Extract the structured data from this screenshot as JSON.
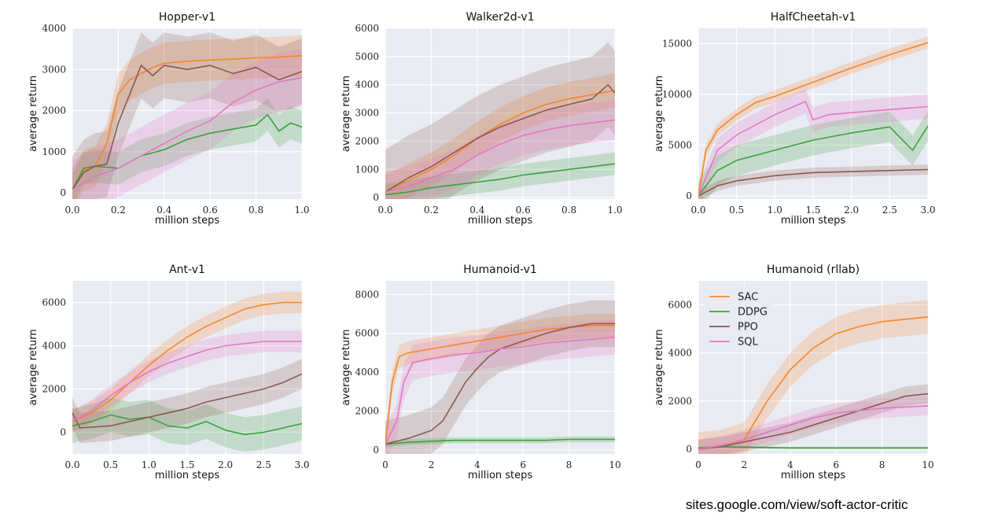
{
  "figure": {
    "source_url": "sites.google.com/view/soft-actor-critic"
  },
  "series_styles": [
    {
      "name": "SAC",
      "color": "#f5862a"
    },
    {
      "name": "DDPG",
      "color": "#3aa13a"
    },
    {
      "name": "PPO",
      "color": "#8b5a4e"
    },
    {
      "name": "SQL",
      "color": "#e377c2"
    }
  ],
  "chart_data": [
    {
      "type": "line",
      "title": "Hopper-v1",
      "xlabel": "million steps",
      "ylabel": "average return",
      "xlim": [
        0,
        1.0
      ],
      "ylim": [
        -150,
        4000
      ],
      "xticks": [
        0,
        0.2,
        0.4,
        0.6,
        0.8,
        1.0
      ],
      "xtick_labels": [
        "0.0",
        "0.2",
        "0.4",
        "0.6",
        "0.8",
        "1.0"
      ],
      "yticks": [
        0,
        1000,
        2000,
        3000,
        4000
      ],
      "ytick_labels": [
        "0",
        "1000",
        "2000",
        "3000",
        "4000"
      ],
      "legend": false,
      "series": [
        {
          "name": "SAC",
          "x": [
            0,
            0.05,
            0.1,
            0.15,
            0.2,
            0.25,
            0.3,
            0.35,
            0.4,
            0.5,
            0.6,
            0.7,
            0.8,
            0.9,
            1.0
          ],
          "y": [
            80,
            550,
            650,
            1200,
            2400,
            2750,
            2900,
            3050,
            3150,
            3200,
            3230,
            3250,
            3280,
            3300,
            3330
          ],
          "band": 500
        },
        {
          "name": "DDPG",
          "x": [
            0,
            0.05,
            0.1,
            0.2,
            0.3,
            0.4,
            0.5,
            0.6,
            0.7,
            0.8,
            0.85,
            0.9,
            0.95,
            1.0
          ],
          "y": [
            80,
            600,
            650,
            600,
            900,
            1050,
            1300,
            1450,
            1550,
            1650,
            1900,
            1500,
            1700,
            1600
          ],
          "band": 400
        },
        {
          "name": "PPO",
          "x": [
            0,
            0.05,
            0.1,
            0.15,
            0.2,
            0.25,
            0.3,
            0.35,
            0.4,
            0.5,
            0.6,
            0.7,
            0.8,
            0.9,
            1.0
          ],
          "y": [
            80,
            500,
            650,
            700,
            1700,
            2400,
            3100,
            2850,
            3100,
            3000,
            3100,
            2900,
            3050,
            2750,
            2950
          ],
          "band": 800
        },
        {
          "name": "SQL",
          "x": [
            0,
            0.1,
            0.2,
            0.3,
            0.4,
            0.5,
            0.6,
            0.7,
            0.8,
            0.9,
            1.0
          ],
          "y": [
            80,
            400,
            600,
            900,
            1200,
            1500,
            1750,
            2200,
            2500,
            2700,
            2800
          ],
          "band": 700
        }
      ]
    },
    {
      "type": "line",
      "title": "Walker2d-v1",
      "xlabel": "million steps",
      "ylabel": "average return",
      "xlim": [
        0,
        1.0
      ],
      "ylim": [
        -50,
        6000
      ],
      "xticks": [
        0,
        0.2,
        0.4,
        0.6,
        0.8,
        1.0
      ],
      "xtick_labels": [
        "0.0",
        "0.2",
        "0.4",
        "0.6",
        "0.8",
        "1.0"
      ],
      "yticks": [
        0,
        1000,
        2000,
        3000,
        4000,
        5000,
        6000
      ],
      "ytick_labels": [
        "0",
        "1000",
        "2000",
        "3000",
        "4000",
        "5000",
        "6000"
      ],
      "legend": false,
      "series": [
        {
          "name": "SAC",
          "x": [
            0,
            0.1,
            0.2,
            0.3,
            0.4,
            0.5,
            0.6,
            0.7,
            0.8,
            0.9,
            1.0
          ],
          "y": [
            200,
            600,
            1000,
            1500,
            2100,
            2600,
            3000,
            3300,
            3500,
            3650,
            3800
          ],
          "band": 600
        },
        {
          "name": "DDPG",
          "x": [
            0,
            0.1,
            0.2,
            0.3,
            0.4,
            0.5,
            0.6,
            0.7,
            0.8,
            0.9,
            1.0
          ],
          "y": [
            100,
            200,
            350,
            450,
            550,
            650,
            800,
            900,
            1000,
            1100,
            1200
          ],
          "band": 400
        },
        {
          "name": "PPO",
          "x": [
            0,
            0.1,
            0.2,
            0.3,
            0.4,
            0.5,
            0.6,
            0.7,
            0.8,
            0.9,
            0.97,
            1.0
          ],
          "y": [
            200,
            700,
            1100,
            1600,
            2100,
            2500,
            2800,
            3100,
            3300,
            3500,
            4000,
            3700
          ],
          "band": 1500
        },
        {
          "name": "SQL",
          "x": [
            0,
            0.1,
            0.2,
            0.3,
            0.4,
            0.5,
            0.6,
            0.7,
            0.8,
            0.9,
            1.0
          ],
          "y": [
            200,
            400,
            700,
            1000,
            1500,
            1900,
            2200,
            2400,
            2550,
            2650,
            2750
          ],
          "band": 700
        }
      ]
    },
    {
      "type": "line",
      "title": "HalfCheetah-v1",
      "xlabel": "million steps",
      "ylabel": "average return",
      "xlim": [
        0,
        3.0
      ],
      "ylim": [
        -300,
        16500
      ],
      "xticks": [
        0,
        0.5,
        1.0,
        1.5,
        2.0,
        2.5,
        3.0
      ],
      "xtick_labels": [
        "0.0",
        "0.5",
        "1.0",
        "1.5",
        "2.0",
        "2.5",
        "3.0"
      ],
      "yticks": [
        0,
        5000,
        10000,
        15000
      ],
      "ytick_labels": [
        "0",
        "5000",
        "10000",
        "15000"
      ],
      "legend": false,
      "series": [
        {
          "name": "SAC",
          "x": [
            0,
            0.1,
            0.25,
            0.5,
            0.75,
            1.0,
            1.5,
            2.0,
            2.5,
            3.0
          ],
          "y": [
            0,
            4500,
            6500,
            8000,
            9200,
            9800,
            11200,
            12600,
            13900,
            15100
          ],
          "band": 600
        },
        {
          "name": "DDPG",
          "x": [
            0,
            0.25,
            0.5,
            1.0,
            1.5,
            2.0,
            2.5,
            2.8,
            3.0
          ],
          "y": [
            0,
            2500,
            3500,
            4500,
            5500,
            6200,
            6800,
            4500,
            6900
          ],
          "band": 1500
        },
        {
          "name": "PPO",
          "x": [
            0,
            0.25,
            0.5,
            1.0,
            1.5,
            2.0,
            2.5,
            3.0
          ],
          "y": [
            0,
            1000,
            1500,
            2000,
            2300,
            2400,
            2500,
            2600
          ],
          "band": 500
        },
        {
          "name": "SQL",
          "x": [
            0,
            0.25,
            0.5,
            1.0,
            1.4,
            1.5,
            1.7,
            2.0,
            2.5,
            3.0
          ],
          "y": [
            0,
            4500,
            6000,
            8000,
            9300,
            7500,
            8000,
            8200,
            8500,
            8800
          ],
          "band": 1200
        }
      ]
    },
    {
      "type": "line",
      "title": "Ant-v1",
      "xlabel": "million steps",
      "ylabel": "average return",
      "xlim": [
        0,
        3.0
      ],
      "ylim": [
        -1000,
        7000
      ],
      "xticks": [
        0,
        0.5,
        1.0,
        1.5,
        2.0,
        2.5,
        3.0
      ],
      "xtick_labels": [
        "0.0",
        "0.5",
        "1.0",
        "1.5",
        "2.0",
        "2.5",
        "3.0"
      ],
      "yticks": [
        0,
        2000,
        4000,
        6000
      ],
      "ytick_labels": [
        "0",
        "2000",
        "4000",
        "6000"
      ],
      "legend": false,
      "series": [
        {
          "name": "SAC",
          "x": [
            0,
            0.25,
            0.5,
            0.75,
            1.0,
            1.25,
            1.5,
            1.75,
            2.0,
            2.25,
            2.5,
            2.75,
            3.0
          ],
          "y": [
            500,
            900,
            1500,
            2300,
            3100,
            3800,
            4400,
            4900,
            5300,
            5700,
            5900,
            6000,
            6000
          ],
          "band": 500
        },
        {
          "name": "DDPG",
          "x": [
            0,
            0.25,
            0.5,
            0.75,
            1.0,
            1.25,
            1.5,
            1.75,
            2.0,
            2.25,
            2.5,
            2.75,
            3.0
          ],
          "y": [
            300,
            500,
            800,
            600,
            700,
            300,
            200,
            500,
            100,
            -100,
            0,
            200,
            400
          ],
          "band": 800
        },
        {
          "name": "PPO",
          "x": [
            0,
            0.1,
            0.5,
            0.75,
            1.0,
            1.25,
            1.5,
            1.75,
            2.0,
            2.25,
            2.5,
            2.75,
            3.0
          ],
          "y": [
            900,
            200,
            300,
            500,
            700,
            900,
            1100,
            1400,
            1600,
            1800,
            2000,
            2300,
            2700
          ],
          "band": 700
        },
        {
          "name": "SQL",
          "x": [
            0,
            0.25,
            0.5,
            0.75,
            1.0,
            1.25,
            1.5,
            1.75,
            2.0,
            2.25,
            2.5,
            2.75,
            3.0
          ],
          "y": [
            500,
            1000,
            1700,
            2300,
            2800,
            3200,
            3500,
            3800,
            4000,
            4100,
            4200,
            4200,
            4200
          ],
          "band": 500
        }
      ]
    },
    {
      "type": "line",
      "title": "Humanoid-v1",
      "xlabel": "million steps",
      "ylabel": "average return",
      "xlim": [
        0,
        10
      ],
      "ylim": [
        -200,
        8700
      ],
      "xticks": [
        0,
        2,
        4,
        6,
        8,
        10
      ],
      "xtick_labels": [
        "0",
        "2",
        "4",
        "6",
        "8",
        "10"
      ],
      "yticks": [
        0,
        2000,
        4000,
        6000,
        8000
      ],
      "ytick_labels": [
        "0",
        "2000",
        "4000",
        "6000",
        "8000"
      ],
      "legend": false,
      "series": [
        {
          "name": "SAC",
          "x": [
            0,
            0.3,
            0.6,
            1,
            2,
            3,
            4,
            5,
            6,
            7,
            8,
            9,
            10
          ],
          "y": [
            300,
            3500,
            4800,
            5000,
            5200,
            5400,
            5600,
            5800,
            6000,
            6200,
            6300,
            6400,
            6400
          ],
          "band": 600
        },
        {
          "name": "DDPG",
          "x": [
            0,
            1,
            2,
            3,
            4,
            5,
            6,
            7,
            8,
            9,
            10
          ],
          "y": [
            300,
            400,
            450,
            500,
            500,
            500,
            500,
            500,
            550,
            550,
            550
          ],
          "band": 150
        },
        {
          "name": "PPO",
          "x": [
            0,
            1,
            2,
            2.5,
            3,
            3.5,
            4,
            4.5,
            5,
            6,
            7,
            8,
            9,
            10
          ],
          "y": [
            300,
            600,
            1000,
            1500,
            2500,
            3500,
            4200,
            4800,
            5200,
            5600,
            6000,
            6300,
            6500,
            6500
          ],
          "band": 1200
        },
        {
          "name": "SQL",
          "x": [
            0,
            0.5,
            0.8,
            1.2,
            2,
            3,
            4,
            5,
            6,
            7,
            8,
            9,
            10
          ],
          "y": [
            300,
            1500,
            3500,
            4500,
            4700,
            4900,
            5000,
            5200,
            5300,
            5500,
            5600,
            5700,
            5800
          ],
          "band": 900
        }
      ]
    },
    {
      "type": "line",
      "title": "Humanoid (rllab)",
      "xlabel": "million steps",
      "ylabel": "average return",
      "xlim": [
        0,
        10
      ],
      "ylim": [
        -200,
        7000
      ],
      "xticks": [
        0,
        2,
        4,
        6,
        8,
        10
      ],
      "xtick_labels": [
        "0",
        "2",
        "4",
        "6",
        "8",
        "10"
      ],
      "yticks": [
        0,
        2000,
        4000,
        6000
      ],
      "ytick_labels": [
        "0",
        "2000",
        "4000",
        "6000"
      ],
      "legend": true,
      "legend_loc": "upper-left",
      "series": [
        {
          "name": "SAC",
          "x": [
            0,
            1,
            2,
            3,
            4,
            5,
            6,
            7,
            8,
            9,
            10
          ],
          "y": [
            0,
            100,
            400,
            2000,
            3300,
            4200,
            4800,
            5100,
            5300,
            5400,
            5500
          ],
          "band": 700
        },
        {
          "name": "DDPG",
          "x": [
            0,
            1,
            2,
            3,
            4,
            5,
            6,
            7,
            8,
            9,
            10
          ],
          "y": [
            50,
            100,
            80,
            60,
            50,
            50,
            50,
            50,
            50,
            50,
            50
          ],
          "band": 50
        },
        {
          "name": "PPO",
          "x": [
            0,
            1,
            2,
            3,
            4,
            5,
            6,
            7,
            8,
            9,
            10
          ],
          "y": [
            0,
            100,
            300,
            500,
            700,
            1000,
            1300,
            1600,
            1900,
            2200,
            2300
          ],
          "band": 400
        },
        {
          "name": "SQL",
          "x": [
            0,
            1,
            2,
            3,
            4,
            5,
            6,
            7,
            8,
            9,
            10
          ],
          "y": [
            0,
            150,
            400,
            700,
            1000,
            1300,
            1500,
            1600,
            1700,
            1750,
            1800
          ],
          "band": 400
        }
      ]
    }
  ]
}
